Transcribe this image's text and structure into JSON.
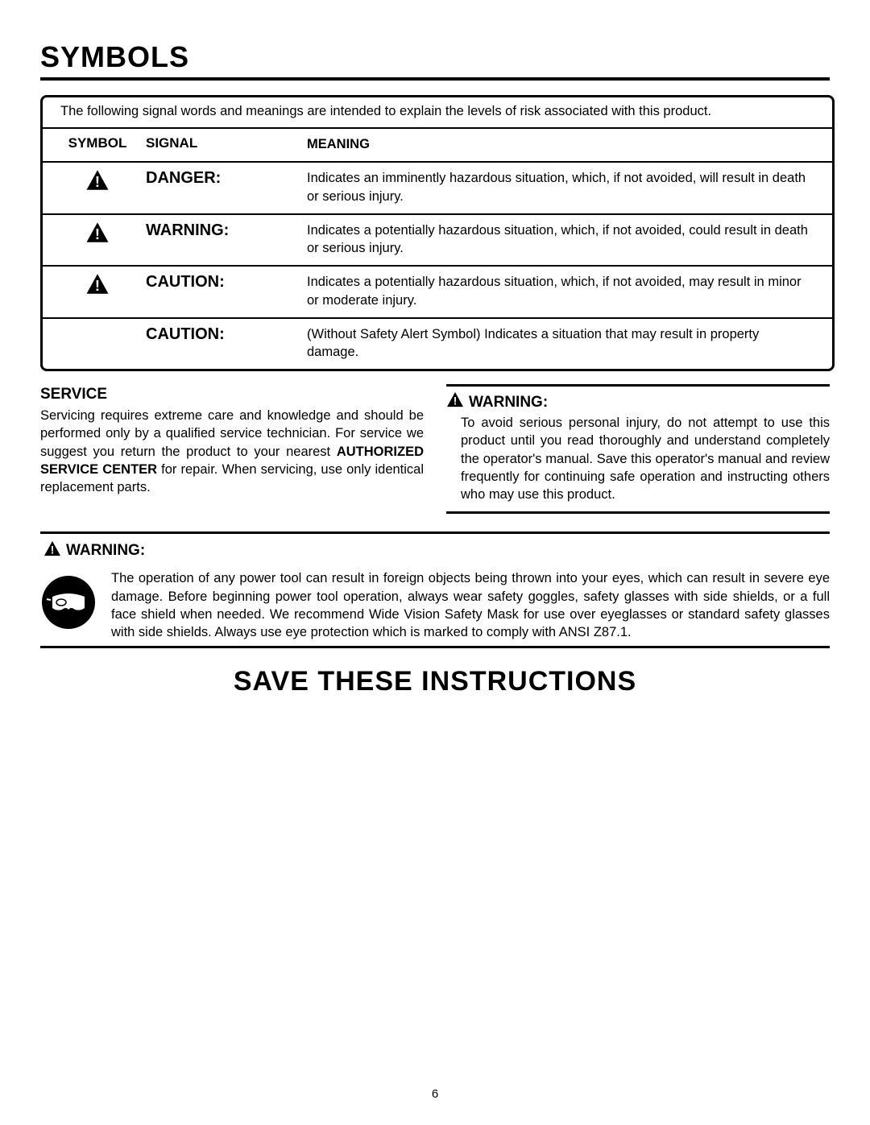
{
  "title": "SYMBOLS",
  "intro": "The following signal words and meanings are intended to explain the levels of risk associated with this product.",
  "headers": {
    "symbol": "SYMBOL",
    "signal": "SIGNAL",
    "meaning": "MEANING"
  },
  "rows": [
    {
      "has_icon": true,
      "signal": "DANGER:",
      "meaning": "Indicates an imminently hazardous situation, which, if not avoided, will result in death or serious injury."
    },
    {
      "has_icon": true,
      "signal": "WARNING:",
      "meaning": "Indicates a potentially hazardous situation, which, if not avoided, could result in death or serious injury."
    },
    {
      "has_icon": true,
      "signal": "CAUTION:",
      "meaning": "Indicates a potentially hazardous situation, which, if not avoided, may result in minor or moderate injury."
    },
    {
      "has_icon": false,
      "signal": "CAUTION:",
      "meaning": "(Without Safety Alert Symbol) Indicates a situation that may result in property damage."
    }
  ],
  "service": {
    "heading": "SERVICE",
    "body_pre": "Servicing requires extreme care and knowledge and should be performed only by a qualified service technician. For service we suggest you return the product to your nearest ",
    "bold": "AUTHORIZED SERVICE CENTER",
    "body_post": " for repair. When servicing, use only identical replacement parts."
  },
  "warning_right": {
    "heading": "WARNING:",
    "body": "To avoid serious personal injury, do not attempt to use this product until you read thoroughly and understand completely the operator's manual. Save this operator's manual and review frequently for continuing safe operation and instructing others who may use this product."
  },
  "warning_full": {
    "heading": "WARNING:",
    "body": "The operation of any power tool can result in foreign objects being thrown into your eyes, which can result in severe eye damage. Before beginning power tool operation, always wear safety goggles, safety glasses with side shields, or a full face shield when needed. We recommend Wide Vision Safety Mask for use over eyeglasses or standard safety glasses with side shields. Always use eye protection which is marked to comply with ANSI Z87.1."
  },
  "save": "SAVE THESE INSTRUCTIONS",
  "page_number": "6",
  "colors": {
    "text": "#000000",
    "bg": "#ffffff"
  }
}
